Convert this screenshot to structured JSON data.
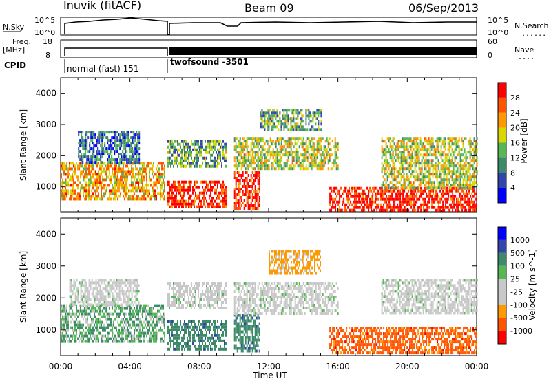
{
  "header": {
    "station": "Inuvik (fitACF)",
    "beam": "Beam 09",
    "date": "06/Sep/2013"
  },
  "strip1": {
    "left_label": "N.Sky",
    "left_ticks": [
      "10^5",
      "10^0"
    ],
    "right_ticks": [
      "10^5",
      "10^0"
    ],
    "right_label": "N.Search"
  },
  "strip2": {
    "left_label_top": "Freq.",
    "left_label_bottom": "[MHz]",
    "left_ticks": [
      "18",
      "8"
    ],
    "right_ticks": [
      "60",
      "0"
    ],
    "right_label": "Nave"
  },
  "cpid": {
    "label": "CPID",
    "modes": [
      {
        "name": "normal (fast) 151",
        "start": "00:00",
        "end": "06:00"
      },
      {
        "name": "twofsound -3501",
        "start": "06:00",
        "end": "24:00"
      }
    ]
  },
  "x_axis": {
    "label": "Time UT",
    "ticks": [
      "00:00",
      "04:00",
      "08:00",
      "12:00",
      "16:00",
      "20:00",
      "00:00"
    ]
  },
  "colors": {
    "power": [
      "#0000ff",
      "#3344aa",
      "#3d8a6a",
      "#55b855",
      "#d8d800",
      "#ff9900",
      "#ff5500",
      "#ff0000"
    ],
    "velocity": [
      "#ff0000",
      "#ff5500",
      "#ff9900",
      "#c8c8c8",
      "#c8c8c8",
      "#55b855",
      "#3d8a6a",
      "#3344aa",
      "#0000ff"
    ]
  },
  "chart_data": [
    {
      "type": "heatmap",
      "title": "Power",
      "ylabel": "Slant Range [km]",
      "xlabel": "Time UT",
      "xlim": [
        0,
        24
      ],
      "ylim": [
        200,
        4500
      ],
      "yticks": [
        "1000",
        "2000",
        "3000",
        "4000"
      ],
      "colorbar": {
        "label": "Power [dB]",
        "ticks": [
          "4",
          "8",
          "12",
          "16",
          "20",
          "24",
          "28"
        ],
        "range": [
          0,
          30
        ]
      },
      "regions": [
        {
          "t": [
            0.0,
            6.0
          ],
          "r": [
            600,
            1800
          ],
          "value": 20
        },
        {
          "t": [
            1.0,
            4.5
          ],
          "r": [
            1800,
            2800
          ],
          "value": 8
        },
        {
          "t": [
            6.0,
            9.5
          ],
          "r": [
            400,
            1200
          ],
          "value": 28
        },
        {
          "t": [
            6.0,
            9.5
          ],
          "r": [
            1700,
            2500
          ],
          "value": 12
        },
        {
          "t": [
            10.0,
            11.5
          ],
          "r": [
            300,
            1500
          ],
          "value": 28
        },
        {
          "t": [
            10.0,
            16.0
          ],
          "r": [
            1600,
            2600
          ],
          "value": 16
        },
        {
          "t": [
            11.5,
            15.0
          ],
          "r": [
            2800,
            3500
          ],
          "value": 12
        },
        {
          "t": [
            15.5,
            24.0
          ],
          "r": [
            250,
            1000
          ],
          "value": 28
        },
        {
          "t": [
            18.5,
            24.0
          ],
          "r": [
            1000,
            2600
          ],
          "value": 16
        }
      ]
    },
    {
      "type": "heatmap",
      "title": "Velocity",
      "ylabel": "Slant Range [km]",
      "xlabel": "Time UT",
      "xlim": [
        0,
        24
      ],
      "ylim": [
        200,
        4500
      ],
      "yticks": [
        "1000",
        "2000",
        "3000",
        "4000"
      ],
      "colorbar": {
        "label": "Velocity [m s^-1]",
        "ticks": [
          "1000",
          "500",
          "100",
          "25",
          "-25",
          "-100",
          "-500",
          "-1000"
        ]
      },
      "regions": [
        {
          "t": [
            0.0,
            6.0
          ],
          "r": [
            600,
            1800
          ],
          "value": 50
        },
        {
          "t": [
            0.5,
            4.5
          ],
          "r": [
            1800,
            2600
          ],
          "value": 0
        },
        {
          "t": [
            6.0,
            9.5
          ],
          "r": [
            400,
            1300
          ],
          "value": 200
        },
        {
          "t": [
            6.0,
            9.5
          ],
          "r": [
            1700,
            2500
          ],
          "value": 0
        },
        {
          "t": [
            10.0,
            11.5
          ],
          "r": [
            300,
            1500
          ],
          "value": 200
        },
        {
          "t": [
            10.0,
            16.0
          ],
          "r": [
            1500,
            2500
          ],
          "value": 0
        },
        {
          "t": [
            12.0,
            15.0
          ],
          "r": [
            2800,
            3500
          ],
          "value": -100
        },
        {
          "t": [
            15.5,
            24.0
          ],
          "r": [
            250,
            1100
          ],
          "value": -500
        },
        {
          "t": [
            18.5,
            24.0
          ],
          "r": [
            1500,
            2600
          ],
          "value": 0
        }
      ]
    }
  ]
}
